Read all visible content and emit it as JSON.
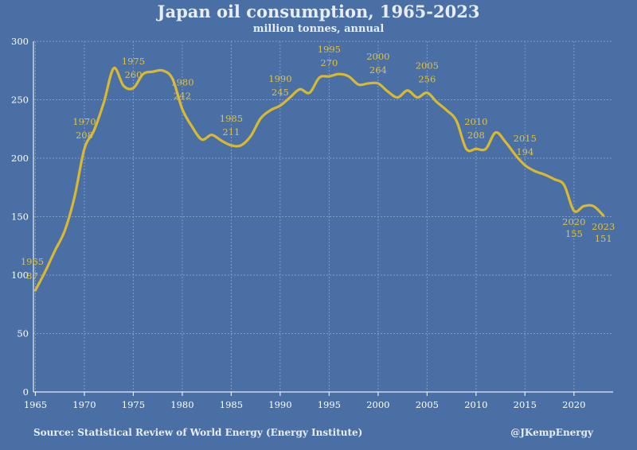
{
  "chart_data": {
    "type": "line",
    "title": "Japan oil consumption, 1965-2023",
    "subtitle": "million tonnes, annual",
    "xlim": [
      1964.8,
      2024
    ],
    "ylim": [
      0,
      300
    ],
    "x_ticks": [
      1965,
      1970,
      1975,
      1980,
      1985,
      1990,
      1995,
      2000,
      2005,
      2010,
      2015,
      2020
    ],
    "y_ticks": [
      0,
      50,
      100,
      150,
      200,
      250,
      300
    ],
    "grid": true,
    "colors": {
      "background": "#4a6fa5",
      "line": "#d9b832",
      "annotation": "#e2c13a",
      "text": "#e8edf5"
    },
    "series": [
      {
        "x": [
          1965,
          1966,
          1967,
          1968,
          1969,
          1970,
          1971,
          1972,
          1973,
          1974,
          1975,
          1976,
          1977,
          1978,
          1979,
          1980,
          1981,
          1982,
          1983,
          1984,
          1985,
          1986,
          1987,
          1988,
          1989,
          1990,
          1991,
          1992,
          1993,
          1994,
          1995,
          1996,
          1997,
          1998,
          1999,
          2000,
          2001,
          2002,
          2003,
          2004,
          2005,
          2006,
          2007,
          2008,
          2009,
          2010,
          2011,
          2012,
          2013,
          2014,
          2015,
          2016,
          2017,
          2018,
          2019,
          2020,
          2021,
          2022,
          2023
        ],
        "values": [
          87,
          103,
          121,
          138,
          167,
          208,
          224,
          248,
          277,
          262,
          260,
          272,
          274,
          275,
          268,
          242,
          227,
          216,
          220,
          215,
          211,
          211,
          219,
          234,
          241,
          245,
          252,
          259,
          256,
          269,
          270,
          272,
          270,
          263,
          264,
          264,
          257,
          252,
          258,
          252,
          256,
          248,
          241,
          232,
          208,
          208,
          208,
          222,
          214,
          203,
          194,
          189,
          186,
          182,
          177,
          155,
          159,
          159,
          151
        ]
      }
    ],
    "annotations": [
      {
        "year": "1965",
        "value": "87",
        "x": 1965,
        "y": 87
      },
      {
        "year": "1970",
        "value": "208",
        "x": 1970,
        "y": 208
      },
      {
        "year": "1975",
        "value": "260",
        "x": 1975,
        "y": 260
      },
      {
        "year": "1980",
        "value": "242",
        "x": 1980,
        "y": 242
      },
      {
        "year": "1985",
        "value": "211",
        "x": 1985,
        "y": 211
      },
      {
        "year": "1990",
        "value": "245",
        "x": 1990,
        "y": 245
      },
      {
        "year": "1995",
        "value": "270",
        "x": 1995,
        "y": 270
      },
      {
        "year": "2000",
        "value": "264",
        "x": 2000,
        "y": 264
      },
      {
        "year": "2005",
        "value": "256",
        "x": 2005,
        "y": 256
      },
      {
        "year": "2010",
        "value": "208",
        "x": 2010,
        "y": 208
      },
      {
        "year": "2015",
        "value": "194",
        "x": 2015,
        "y": 194
      },
      {
        "year": "2020",
        "value": "155",
        "x": 2020,
        "y": 155
      },
      {
        "year": "2023",
        "value": "151",
        "x": 2023,
        "y": 151
      }
    ]
  },
  "footer": {
    "source": "Source: Statistical Review of World Energy (Energy Institute)",
    "credit": "@JKempEnergy"
  }
}
